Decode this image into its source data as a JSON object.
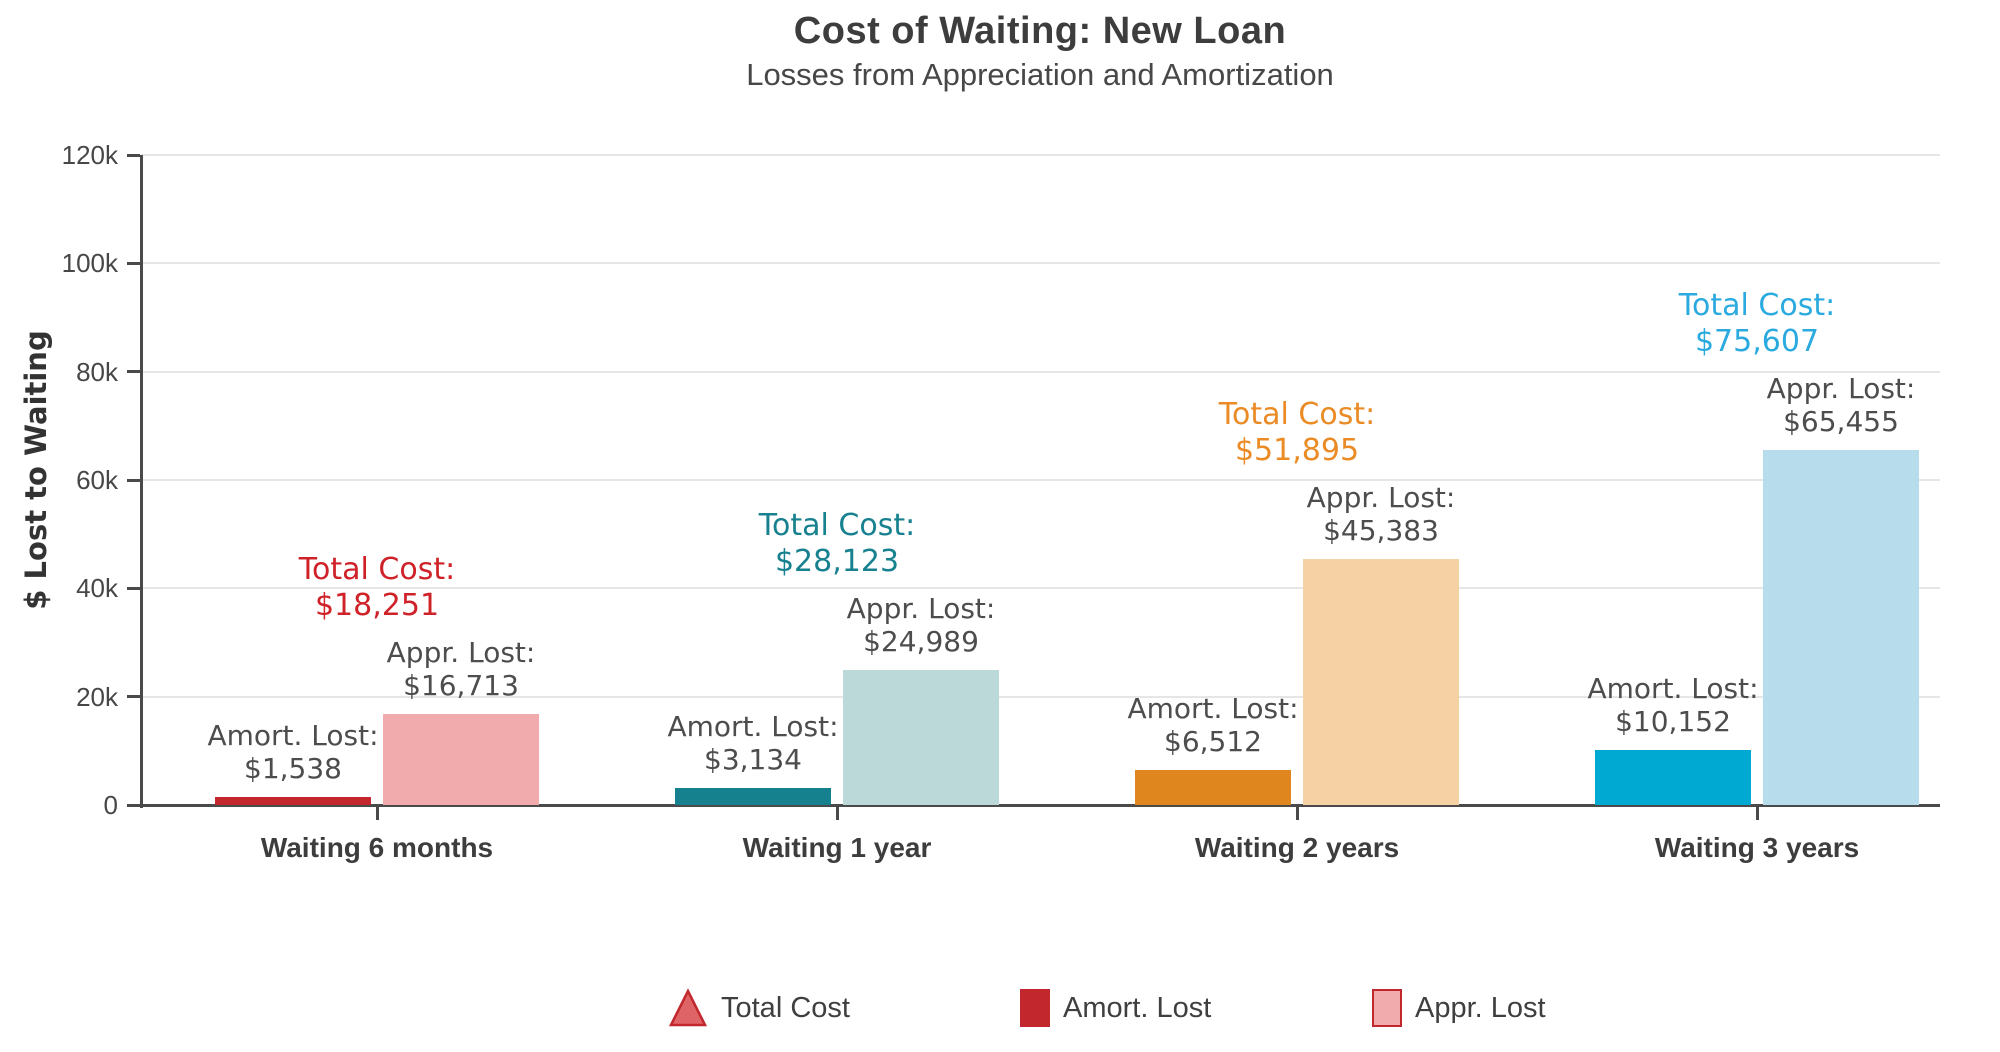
{
  "chart_data": {
    "type": "bar",
    "title": "Cost of Waiting: New Loan",
    "subtitle": "Losses from Appreciation and Amortization",
    "xlabel": "",
    "ylabel": "$ Lost to Waiting",
    "ylim": [
      0,
      120000
    ],
    "grid": true,
    "legend_position": "bottom",
    "y_ticks": [
      {
        "value": 0,
        "label": "0"
      },
      {
        "value": 20000,
        "label": "20k"
      },
      {
        "value": 40000,
        "label": "40k"
      },
      {
        "value": 60000,
        "label": "60k"
      },
      {
        "value": 80000,
        "label": "80k"
      },
      {
        "value": 100000,
        "label": "100k"
      },
      {
        "value": 120000,
        "label": "120k"
      }
    ],
    "categories": [
      "Waiting 6 months",
      "Waiting 1 year",
      "Waiting 2 years",
      "Waiting 3 years"
    ],
    "series": [
      {
        "name": "Amort. Lost",
        "values": [
          1538,
          3134,
          6512,
          10152
        ]
      },
      {
        "name": "Appr. Lost",
        "values": [
          16713,
          24989,
          45383,
          65455
        ]
      },
      {
        "name": "Total Cost",
        "values": [
          18251,
          28123,
          51895,
          75607
        ]
      }
    ],
    "annotation_titles": {
      "total": "Total Cost:",
      "amort": "Amort. Lost:",
      "appr": "Appr. Lost:"
    },
    "groups": [
      {
        "category": "Waiting 6 months",
        "amort": 1538,
        "amort_text": "$1,538",
        "appr": 16713,
        "appr_text": "$16,713",
        "total": 18251,
        "total_text": "$18,251",
        "colors": {
          "amort": "#c1272d",
          "appr": "#f2abad",
          "accent": "#cf2128"
        }
      },
      {
        "category": "Waiting 1 year",
        "amort": 3134,
        "amort_text": "$3,134",
        "appr": 24989,
        "appr_text": "$24,989",
        "total": 28123,
        "total_text": "$28,123",
        "colors": {
          "amort": "#15808e",
          "appr": "#bcd9da",
          "accent": "#17818f"
        }
      },
      {
        "category": "Waiting 2 years",
        "amort": 6512,
        "amort_text": "$6,512",
        "appr": 45383,
        "appr_text": "$45,383",
        "total": 51895,
        "total_text": "$51,895",
        "colors": {
          "amort": "#df861e",
          "appr": "#f5d1a4",
          "accent": "#ea8b25"
        }
      },
      {
        "category": "Waiting 3 years",
        "amort": 10152,
        "amort_text": "$10,152",
        "appr": 65455,
        "appr_text": "$65,455",
        "total": 75607,
        "total_text": "$75,607",
        "colors": {
          "amort": "#00a9d1",
          "appr": "#b7ddec",
          "accent": "#2aaade"
        }
      }
    ],
    "legend": {
      "items": [
        {
          "label": "Total Cost",
          "marker": "triangle",
          "fill": "#de6468",
          "border": "#c1272d"
        },
        {
          "label": "Amort. Lost",
          "marker": "square",
          "fill": "#c1272d",
          "border": "#c1272d"
        },
        {
          "label": "Appr. Lost",
          "marker": "square",
          "fill": "#f2abad",
          "border": "#c1272d"
        }
      ]
    }
  }
}
